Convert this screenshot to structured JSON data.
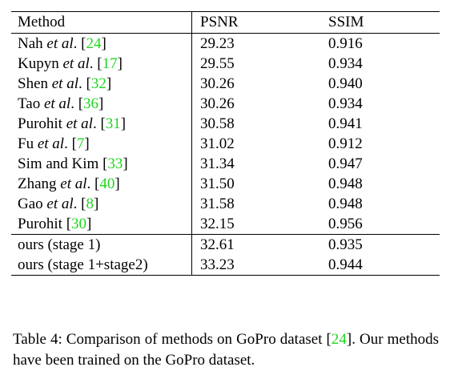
{
  "table": {
    "headers": {
      "method": "Method",
      "psnr": "PSNR",
      "ssim": "SSIM"
    },
    "rows": [
      {
        "name": "Nah",
        "etal": "et al",
        "cite": "24",
        "psnr": "29.23",
        "ssim": "0.916"
      },
      {
        "name": "Kupyn",
        "etal": "et al",
        "cite": "17",
        "psnr": "29.55",
        "ssim": "0.934"
      },
      {
        "name": "Shen",
        "etal": "et al",
        "cite": "32",
        "psnr": "30.26",
        "ssim": "0.940"
      },
      {
        "name": "Tao",
        "etal": "et al",
        "cite": "36",
        "psnr": "30.26",
        "ssim": "0.934"
      },
      {
        "name": "Purohit",
        "etal": "et al",
        "cite": "31",
        "psnr": "30.58",
        "ssim": "0.941"
      },
      {
        "name": "Fu",
        "etal": "et al",
        "cite": "7",
        "psnr": "31.02",
        "ssim": "0.912"
      },
      {
        "name": "Sim and Kim",
        "etal": "",
        "cite": "33",
        "psnr": "31.34",
        "ssim": "0.947"
      },
      {
        "name": "Zhang",
        "etal": "et al",
        "cite": "40",
        "psnr": "31.50",
        "ssim": "0.948"
      },
      {
        "name": "Gao",
        "etal": "et al",
        "cite": "8",
        "psnr": "31.58",
        "ssim": "0.948"
      },
      {
        "name": "Purohit",
        "etal": "",
        "cite": "30",
        "psnr": "32.15",
        "ssim": "0.956",
        "ssim_bold": true
      }
    ],
    "ours": [
      {
        "name": "ours (stage 1)",
        "psnr": "32.61",
        "ssim": "0.935"
      },
      {
        "name": "ours (stage 1+stage2)",
        "psnr": "33.23",
        "ssim": "0.944",
        "psnr_bold": true
      }
    ]
  },
  "caption": {
    "before": "Table 4:  Comparison of methods on GoPro dataset [",
    "cite": "24",
    "after": "]. Our methods have been trained on the GoPro dataset."
  },
  "colors": {
    "citation": "#1fd51f",
    "text": "#000000"
  }
}
